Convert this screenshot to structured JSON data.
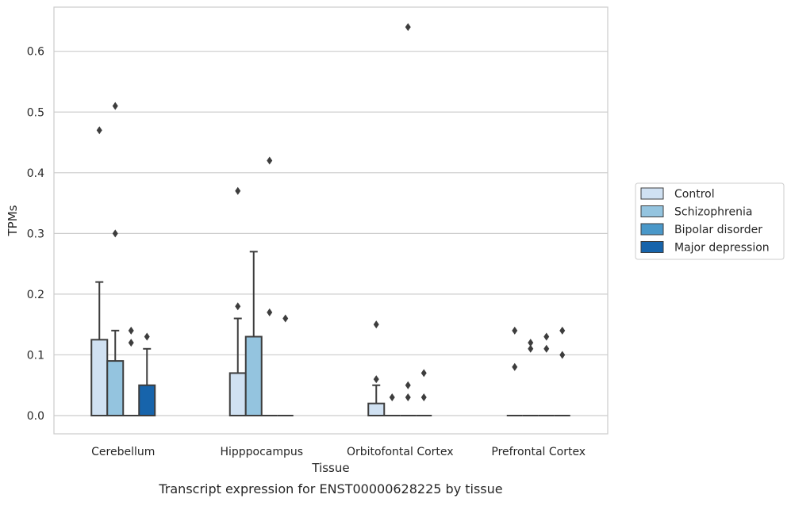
{
  "chart_data": {
    "type": "box",
    "title": "",
    "caption": "Transcript expression for ENST00000628225 by tissue",
    "xlabel": "Tissue",
    "ylabel": "TPMs",
    "ylim": [
      -0.032,
      0.675
    ],
    "yticks": [
      0.0,
      0.1,
      0.2,
      0.3,
      0.4,
      0.5,
      0.6
    ],
    "ytick_labels": [
      "0.0",
      "0.1",
      "0.2",
      "0.3",
      "0.4",
      "0.5",
      "0.6"
    ],
    "grid": true,
    "legend_position": "right",
    "categories": [
      "Cerebellum",
      "Hipppocampus",
      "Orbitofontal Cortex",
      "Prefrontal Cortex"
    ],
    "series": [
      {
        "name": "Control",
        "color": "#d0e1f2",
        "boxes": [
          {
            "q1": 0.0,
            "median": 0.0,
            "q3": 0.125,
            "whisker_low": 0.0,
            "whisker_high": 0.22,
            "outliers": [
              0.47
            ]
          },
          {
            "q1": 0.0,
            "median": 0.0,
            "q3": 0.07,
            "whisker_low": 0.0,
            "whisker_high": 0.16,
            "outliers": [
              0.18,
              0.37
            ]
          },
          {
            "q1": 0.0,
            "median": 0.0,
            "q3": 0.02,
            "whisker_low": 0.0,
            "whisker_high": 0.05,
            "outliers": [
              0.06,
              0.15
            ]
          },
          {
            "q1": 0.0,
            "median": 0.0,
            "q3": 0.0,
            "whisker_low": 0.0,
            "whisker_high": 0.0,
            "outliers": [
              0.08,
              0.14
            ]
          }
        ]
      },
      {
        "name": "Schizophrenia",
        "color": "#94c4df",
        "boxes": [
          {
            "q1": 0.0,
            "median": 0.0,
            "q3": 0.09,
            "whisker_low": 0.0,
            "whisker_high": 0.14,
            "outliers": [
              0.3,
              0.51
            ]
          },
          {
            "q1": 0.0,
            "median": 0.0,
            "q3": 0.13,
            "whisker_low": 0.0,
            "whisker_high": 0.27,
            "outliers": []
          },
          {
            "q1": 0.0,
            "median": 0.0,
            "q3": 0.0,
            "whisker_low": 0.0,
            "whisker_high": 0.0,
            "outliers": [
              0.03
            ]
          },
          {
            "q1": 0.0,
            "median": 0.0,
            "q3": 0.0,
            "whisker_low": 0.0,
            "whisker_high": 0.0,
            "outliers": [
              0.11,
              0.12
            ]
          }
        ]
      },
      {
        "name": "Bipolar disorder",
        "color": "#4a98c9",
        "boxes": [
          {
            "q1": 0.0,
            "median": 0.0,
            "q3": 0.0,
            "whisker_low": 0.0,
            "whisker_high": 0.0,
            "outliers": [
              0.12,
              0.14
            ]
          },
          {
            "q1": 0.0,
            "median": 0.0,
            "q3": 0.0,
            "whisker_low": 0.0,
            "whisker_high": 0.0,
            "outliers": [
              0.17,
              0.42
            ]
          },
          {
            "q1": 0.0,
            "median": 0.0,
            "q3": 0.0,
            "whisker_low": 0.0,
            "whisker_high": 0.0,
            "outliers": [
              0.03,
              0.05,
              0.64
            ]
          },
          {
            "q1": 0.0,
            "median": 0.0,
            "q3": 0.0,
            "whisker_low": 0.0,
            "whisker_high": 0.0,
            "outliers": [
              0.11,
              0.13
            ]
          }
        ]
      },
      {
        "name": "Major depression",
        "color": "#1764ab",
        "boxes": [
          {
            "q1": 0.0,
            "median": 0.0,
            "q3": 0.05,
            "whisker_low": 0.0,
            "whisker_high": 0.11,
            "outliers": [
              0.13
            ]
          },
          {
            "q1": 0.0,
            "median": 0.0,
            "q3": 0.0,
            "whisker_low": 0.0,
            "whisker_high": 0.0,
            "outliers": [
              0.16
            ]
          },
          {
            "q1": 0.0,
            "median": 0.0,
            "q3": 0.0,
            "whisker_low": 0.0,
            "whisker_high": 0.0,
            "outliers": [
              0.03,
              0.07
            ]
          },
          {
            "q1": 0.0,
            "median": 0.0,
            "q3": 0.0,
            "whisker_low": 0.0,
            "whisker_high": 0.0,
            "outliers": [
              0.1,
              0.14
            ]
          }
        ]
      }
    ]
  }
}
